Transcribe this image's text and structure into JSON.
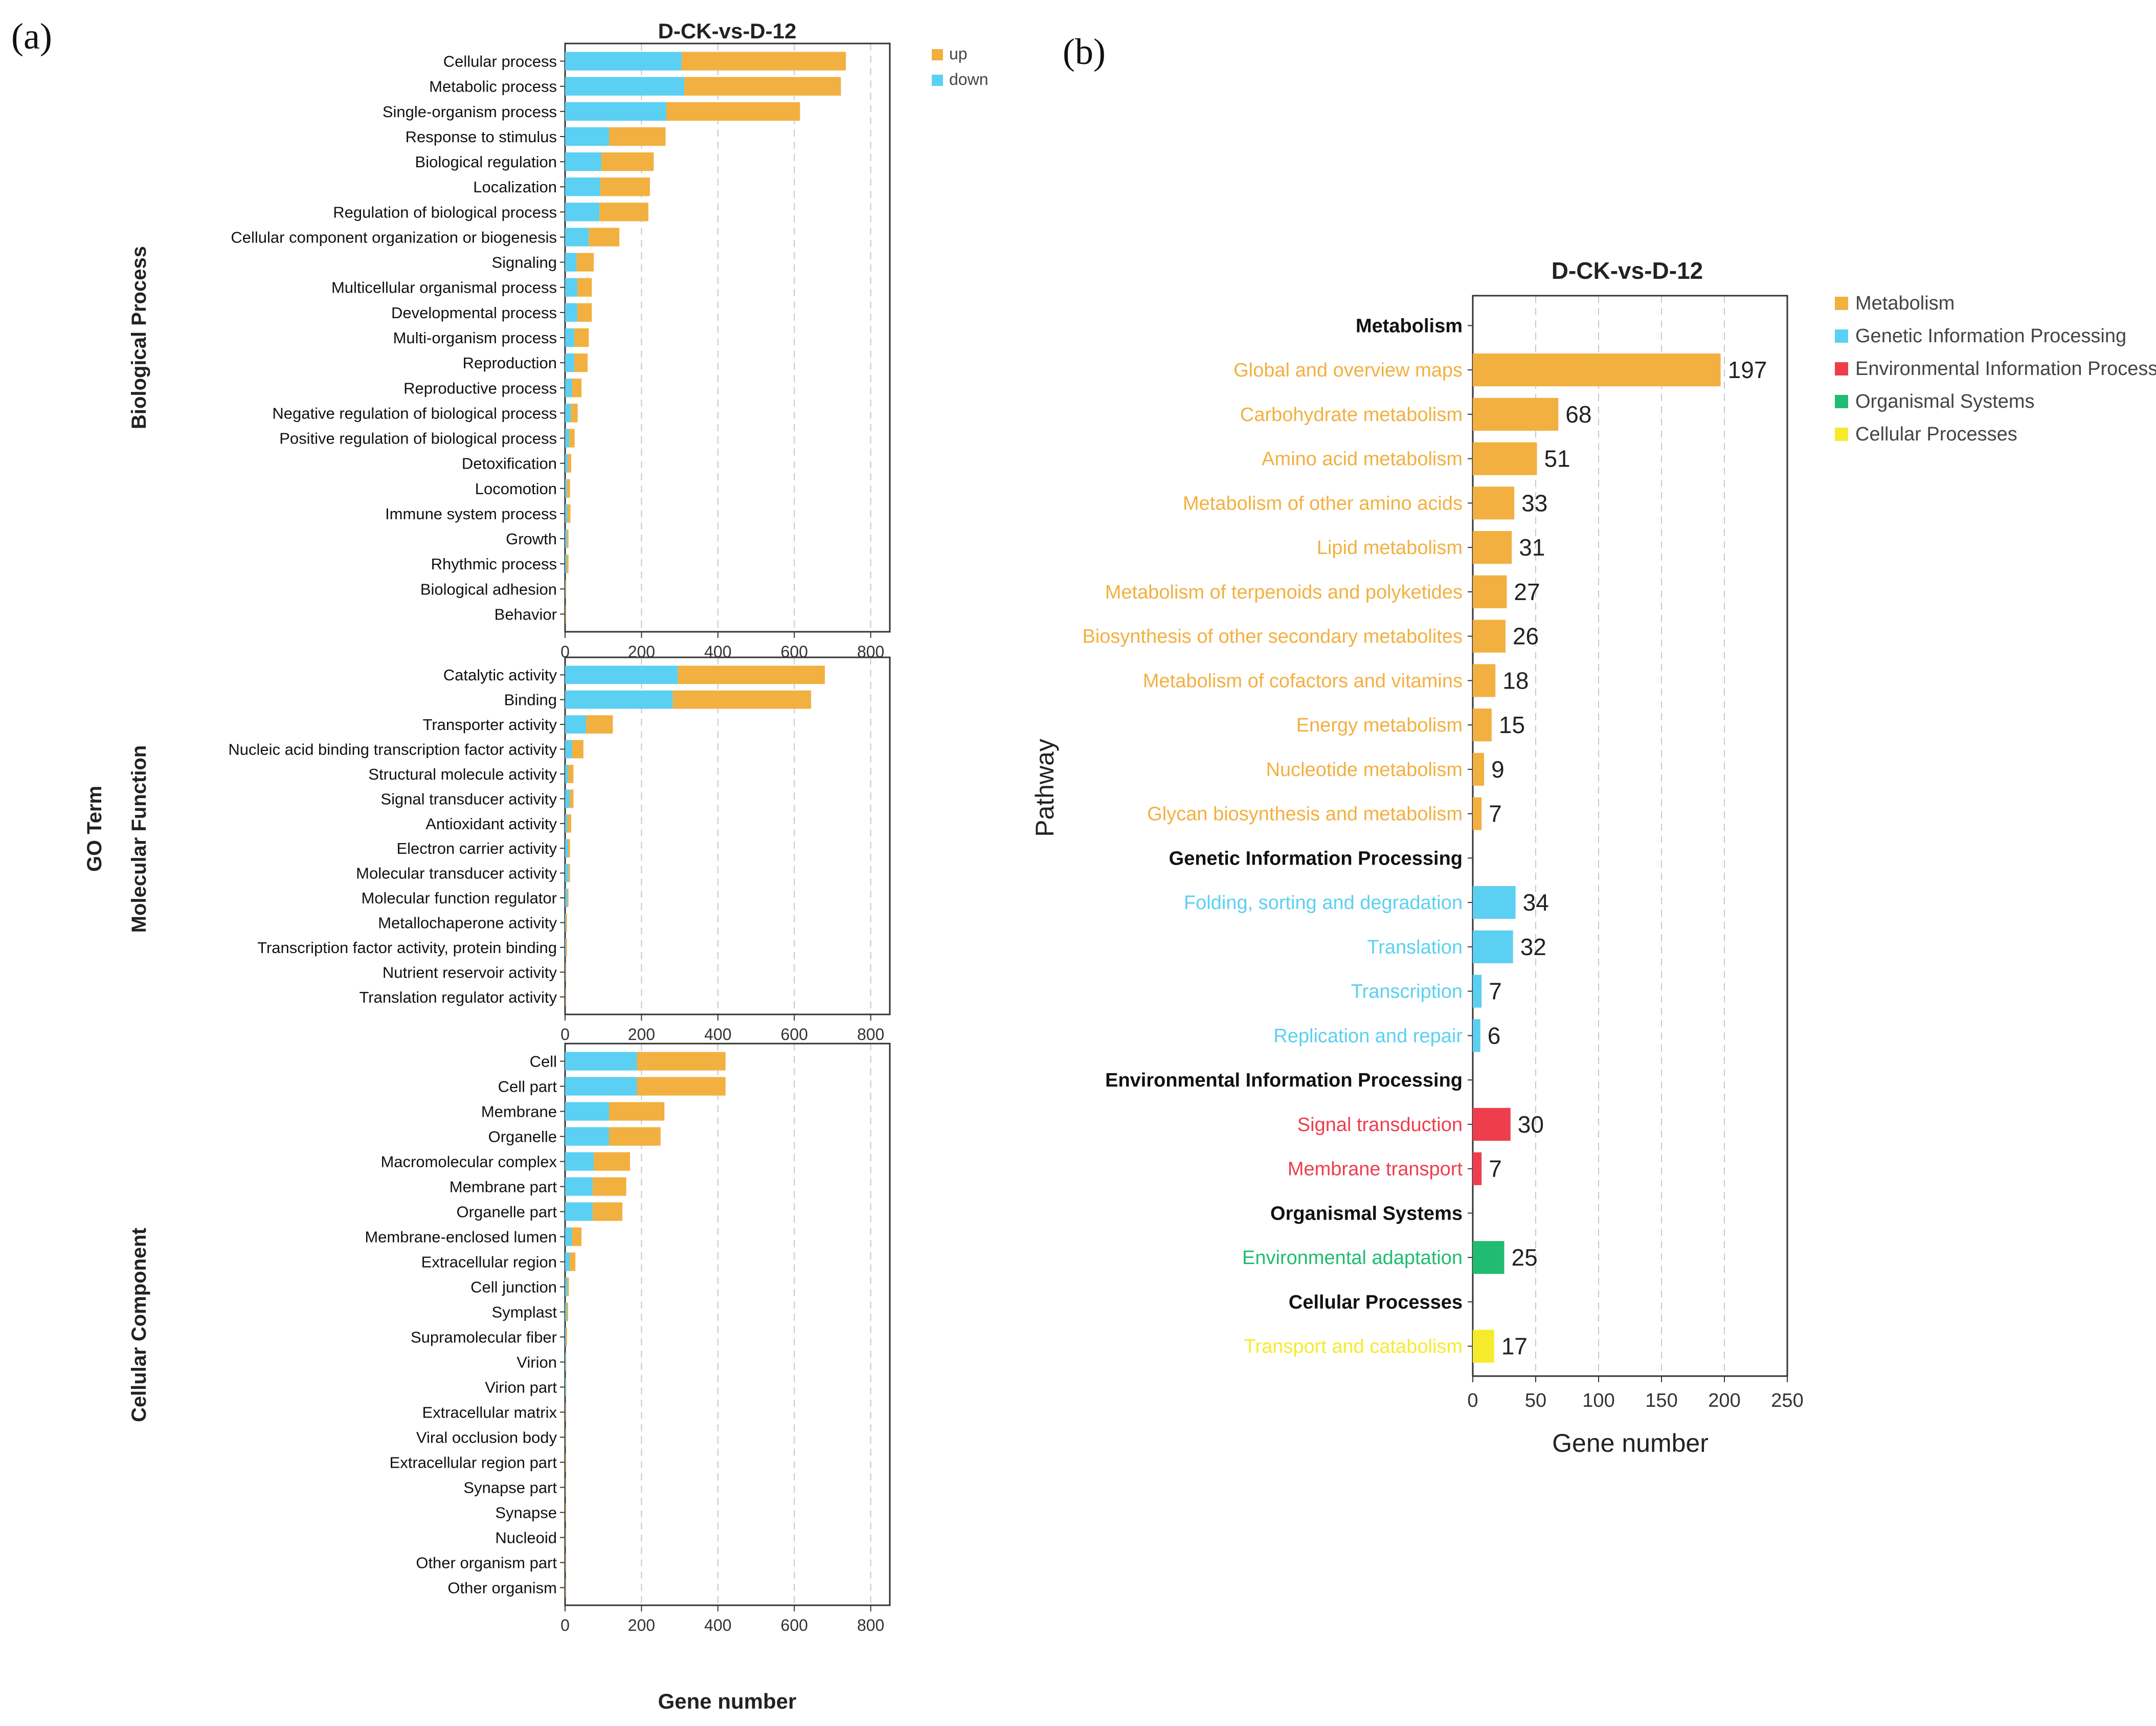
{
  "colors": {
    "up": "#F2B040",
    "down": "#5BD0F2",
    "metabolism": "#F2B040",
    "genetic": "#5BD0F2",
    "environmental": "#EE3E4E",
    "organismal": "#20BC72",
    "cellular": "#F5EB2C",
    "axis": "#333333",
    "grid": "#c8c8c8",
    "category_text": "#111111"
  },
  "chart_data": [
    {
      "id": "a",
      "panel_label": "(a)",
      "type": "bar",
      "orientation": "horizontal",
      "stacked": true,
      "title": "D-CK-vs-D-12",
      "xlabel": "Gene number",
      "ylabel": "GO Term",
      "xlim": [
        0,
        850
      ],
      "xticks": [
        0,
        200,
        400,
        600,
        800
      ],
      "legend": [
        {
          "label": "up",
          "color_key": "up"
        },
        {
          "label": "down",
          "color_key": "down"
        }
      ],
      "legend_position": "top-right",
      "groups": [
        {
          "name": "Biological Process",
          "categories": [
            "Cellular process",
            "Metabolic process",
            "Single-organism process",
            "Response to stimulus",
            "Biological regulation",
            "Localization",
            "Regulation of biological process",
            "Cellular component organization or biogenesis",
            "Signaling",
            "Multicellular organismal process",
            "Developmental process",
            "Multi-organism process",
            "Reproduction",
            "Reproductive process",
            "Negative regulation of biological process",
            "Positive regulation of biological process",
            "Detoxification",
            "Locomotion",
            "Immune system process",
            "Growth",
            "Rhythmic process",
            "Biological adhesion",
            "Behavior"
          ],
          "series": [
            {
              "name": "down",
              "values": [
                305,
                312,
                265,
                115,
                95,
                92,
                90,
                62,
                30,
                32,
                32,
                24,
                24,
                18,
                15,
                11,
                7,
                5,
                6,
                5,
                4,
                1,
                0
              ]
            },
            {
              "name": "up",
              "values": [
                430,
                410,
                350,
                148,
                137,
                130,
                128,
                80,
                45,
                38,
                38,
                38,
                35,
                25,
                18,
                14,
                9,
                8,
                8,
                4,
                5,
                2,
                1
              ]
            }
          ]
        },
        {
          "name": "Molecular Function",
          "categories": [
            "Catalytic activity",
            "Binding",
            "Transporter activity",
            "Nucleic acid binding transcription factor activity",
            "Structural molecule activity",
            "Signal transducer activity",
            "Antioxidant activity",
            "Electron carrier activity",
            "Molecular transducer activity",
            "Molecular function regulator",
            "Metallochaperone activity",
            "Transcription factor activity, protein binding",
            "Nutrient reservoir activity",
            "Translation regulator activity"
          ],
          "series": [
            {
              "name": "down",
              "values": [
                295,
                282,
                55,
                18,
                8,
                12,
                6,
                8,
                9,
                6,
                2,
                2,
                0,
                0
              ]
            },
            {
              "name": "up",
              "values": [
                385,
                362,
                70,
                30,
                14,
                10,
                10,
                5,
                4,
                3,
                3,
                3,
                1,
                1
              ]
            }
          ]
        },
        {
          "name": "Cellular Component",
          "categories": [
            "Cell",
            "Cell part",
            "Membrane",
            "Organelle",
            "Macromolecular complex",
            "Membrane part",
            "Organelle part",
            "Membrane-enclosed lumen",
            "Extracellular region",
            "Cell junction",
            "Symplast",
            "Supramolecular fiber",
            "Virion",
            "Virion part",
            "Extracellular matrix",
            "Viral occlusion body",
            "Extracellular region part",
            "Synapse part",
            "Synapse",
            "Nucleoid",
            "Other organism part",
            "Other organism"
          ],
          "series": [
            {
              "name": "down",
              "values": [
                188,
                188,
                115,
                115,
                75,
                72,
                72,
                18,
                12,
                6,
                4,
                2,
                2,
                2,
                0,
                0,
                0,
                0,
                0,
                0,
                0,
                0
              ]
            },
            {
              "name": "up",
              "values": [
                232,
                232,
                145,
                135,
                95,
                88,
                78,
                25,
                15,
                4,
                4,
                3,
                1,
                1,
                1,
                1,
                1,
                1,
                1,
                1,
                1,
                1
              ]
            }
          ]
        }
      ]
    },
    {
      "id": "b",
      "panel_label": "(b)",
      "type": "bar",
      "orientation": "horizontal",
      "title": "D-CK-vs-D-12",
      "xlabel": "Gene number",
      "ylabel": "Pathway",
      "xlim": [
        0,
        250
      ],
      "xticks": [
        0,
        50,
        100,
        150,
        200,
        250
      ],
      "legend": [
        {
          "label": "Metabolism",
          "color_key": "metabolism"
        },
        {
          "label": "Genetic Information Processing",
          "color_key": "genetic"
        },
        {
          "label": "Environmental Information Processing",
          "color_key": "environmental"
        },
        {
          "label": "Organismal Systems",
          "color_key": "organismal"
        },
        {
          "label": "Cellular Processes",
          "color_key": "cellular"
        }
      ],
      "legend_position": "top-right",
      "groups": [
        {
          "name": "Metabolism",
          "color_key": "metabolism",
          "categories": [
            "Global and overview maps",
            "Carbohydrate metabolism",
            "Amino acid metabolism",
            "Metabolism of other amino acids",
            "Lipid metabolism",
            "Metabolism of terpenoids and polyketides",
            "Biosynthesis of other secondary metabolites",
            "Metabolism of cofactors and vitamins",
            "Energy metabolism",
            "Nucleotide metabolism",
            "Glycan biosynthesis and metabolism"
          ],
          "values": [
            197,
            68,
            51,
            33,
            31,
            27,
            26,
            18,
            15,
            9,
            7
          ]
        },
        {
          "name": "Genetic Information Processing",
          "color_key": "genetic",
          "categories": [
            "Folding, sorting and degradation",
            "Translation",
            "Transcription",
            "Replication and repair"
          ],
          "values": [
            34,
            32,
            7,
            6
          ]
        },
        {
          "name": "Environmental Information Processing",
          "color_key": "environmental",
          "categories": [
            "Signal transduction",
            "Membrane transport"
          ],
          "values": [
            30,
            7
          ]
        },
        {
          "name": "Organismal Systems",
          "color_key": "organismal",
          "categories": [
            "Environmental adaptation"
          ],
          "values": [
            25
          ]
        },
        {
          "name": "Cellular Processes",
          "color_key": "cellular",
          "categories": [
            "Transport and catabolism"
          ],
          "values": [
            17
          ]
        }
      ]
    }
  ]
}
